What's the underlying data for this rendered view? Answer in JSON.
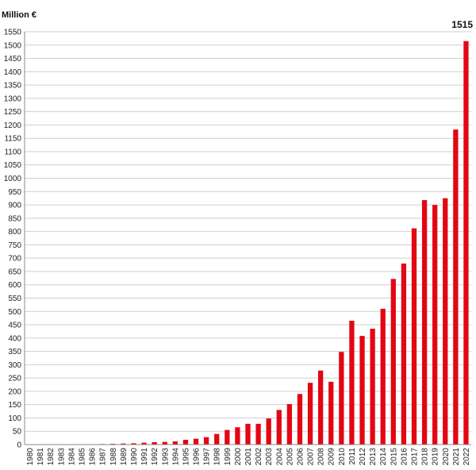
{
  "chart_data": {
    "type": "bar",
    "title": "",
    "ylabel": "Million €",
    "xlabel": "",
    "ylim": [
      0,
      1550
    ],
    "yticks": [
      0,
      50,
      100,
      150,
      200,
      250,
      300,
      350,
      400,
      450,
      500,
      550,
      600,
      650,
      700,
      750,
      800,
      850,
      900,
      950,
      1000,
      1050,
      1100,
      1150,
      1200,
      1250,
      1300,
      1350,
      1400,
      1450,
      1500,
      1550
    ],
    "grid": true,
    "bar_color": "#e30613",
    "categories": [
      "1980",
      "1981",
      "1982",
      "1983",
      "1984",
      "1985",
      "1986",
      "1987",
      "1988",
      "1989",
      "1990",
      "1991",
      "1992",
      "1993",
      "1994",
      "1995",
      "1996",
      "1997",
      "1998",
      "1999",
      "2000",
      "2001",
      "2002",
      "2003",
      "2004",
      "2005",
      "2006",
      "2007",
      "2008",
      "2009",
      "2010",
      "2011",
      "2012",
      "2013",
      "2014",
      "2015",
      "2016",
      "2017",
      "2018",
      "2019",
      "2020",
      "2021",
      "2022"
    ],
    "values": [
      0,
      0,
      0,
      0,
      0,
      1,
      1,
      2,
      3,
      4,
      5,
      7,
      9,
      10,
      12,
      18,
      22,
      28,
      40,
      55,
      65,
      78,
      78,
      98,
      130,
      152,
      190,
      232,
      278,
      236,
      348,
      465,
      408,
      435,
      510,
      622,
      680,
      812,
      918,
      900,
      925,
      1183,
      1515
    ],
    "annotations": [
      {
        "category": "2022",
        "text": "1515"
      }
    ]
  }
}
